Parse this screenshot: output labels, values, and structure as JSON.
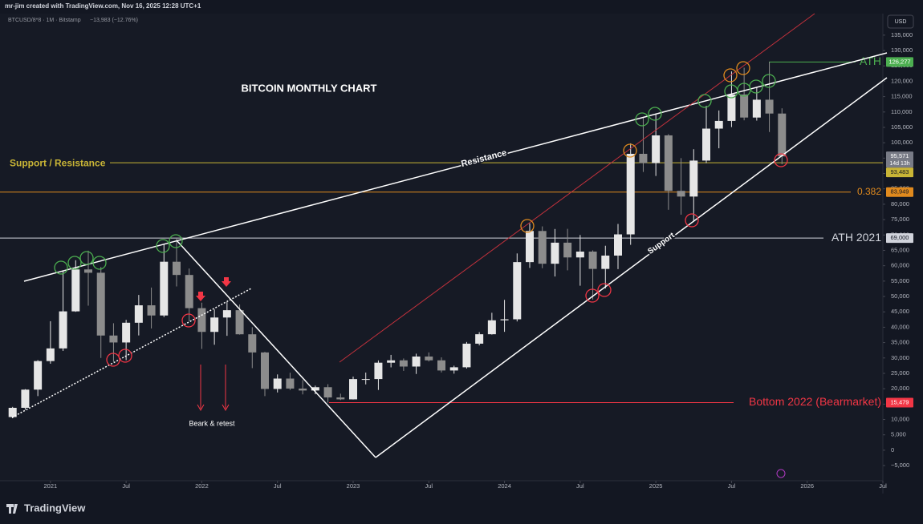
{
  "chart_data": {
    "type": "candlestick",
    "header": "mr-jim created with TradingView.com, Nov 16, 2025 12:28 UTC+1",
    "symbol": "BTCUSD/8*8 · 1M · Bitstamp",
    "change": "−13,983 (−12.76%)",
    "currency": "USD",
    "title": "BITCOIN MONTHLY CHART",
    "annotations": {
      "resistance": "Resistance",
      "support": "Support",
      "bear": "Beark & retest"
    },
    "brand": "TradingView",
    "up_color": "#e6e6e6",
    "down_color": "#8c8c8c",
    "x": [
      "2020-10",
      "2020-11",
      "2020-12",
      "2021-01",
      "2021-02",
      "2021-03",
      "2021-04",
      "2021-05",
      "2021-06",
      "2021-07",
      "2021-08",
      "2021-09",
      "2021-10",
      "2021-11",
      "2021-12",
      "2022-01",
      "2022-02",
      "2022-03",
      "2022-04",
      "2022-05",
      "2022-06",
      "2022-07",
      "2022-08",
      "2022-09",
      "2022-10",
      "2022-11",
      "2022-12",
      "2023-01",
      "2023-02",
      "2023-03",
      "2023-04",
      "2023-05",
      "2023-06",
      "2023-07",
      "2023-08",
      "2023-09",
      "2023-10",
      "2023-11",
      "2023-12",
      "2024-01",
      "2024-02",
      "2024-03",
      "2024-04",
      "2024-05",
      "2024-06",
      "2024-07",
      "2024-08",
      "2024-09",
      "2024-10",
      "2024-11",
      "2024-12",
      "2025-01",
      "2025-02",
      "2025-03",
      "2025-04",
      "2025-05",
      "2025-06",
      "2025-07",
      "2025-08",
      "2025-09",
      "2025-10",
      "2025-11"
    ],
    "open": [
      10780,
      13790,
      19700,
      28990,
      33110,
      45160,
      58800,
      57720,
      37300,
      35040,
      41460,
      47130,
      43820,
      61300,
      57000,
      46200,
      38480,
      43160,
      45540,
      37700,
      31800,
      19930,
      23300,
      20050,
      19420,
      20490,
      17160,
      16540,
      23130,
      23140,
      28460,
      29230,
      27210,
      30470,
      29230,
      25930,
      26970,
      34650,
      37720,
      42250,
      42580,
      61180,
      71300,
      60650,
      67500,
      62700,
      64600,
      58970,
      63300,
      70200,
      96400,
      93400,
      102400,
      84350,
      82500,
      94200,
      104600,
      107100,
      115700,
      108200,
      114000,
      109500
    ],
    "high": [
      14100,
      19860,
      29300,
      41950,
      58350,
      61780,
      64900,
      59600,
      41300,
      42400,
      50500,
      52900,
      67000,
      69000,
      59100,
      47990,
      45800,
      48200,
      47400,
      40000,
      31980,
      24650,
      25200,
      22800,
      21000,
      21460,
      18390,
      23960,
      25250,
      29200,
      31000,
      29830,
      31400,
      31800,
      30200,
      27480,
      35200,
      38400,
      44700,
      48900,
      64000,
      73800,
      72800,
      71950,
      72000,
      70000,
      65000,
      66500,
      73600,
      99800,
      108300,
      109400,
      102800,
      95000,
      97900,
      112000,
      110500,
      123200,
      124400,
      117900,
      126272,
      111200
    ],
    "low": [
      10400,
      13200,
      17600,
      28130,
      32300,
      45000,
      47000,
      30000,
      28800,
      29280,
      37330,
      39600,
      43300,
      53250,
      42000,
      32950,
      34300,
      37200,
      37600,
      26700,
      17600,
      18780,
      19600,
      18150,
      18200,
      15479,
      16300,
      16500,
      21400,
      19600,
      26950,
      25800,
      24800,
      28860,
      25300,
      24900,
      26560,
      34100,
      37600,
      38500,
      41880,
      59300,
      59200,
      56500,
      58500,
      53500,
      49000,
      52600,
      58900,
      66800,
      90500,
      89200,
      78200,
      76600,
      74500,
      93400,
      98200,
      105100,
      107300,
      107200,
      103500,
      93000
    ],
    "close": [
      13790,
      19700,
      28990,
      33110,
      45160,
      58800,
      57720,
      37300,
      35040,
      41460,
      47130,
      43820,
      61300,
      57000,
      46200,
      38480,
      43160,
      45540,
      37700,
      31800,
      19930,
      23300,
      20050,
      19420,
      20490,
      17160,
      16540,
      23130,
      23140,
      28460,
      29230,
      27210,
      30470,
      29230,
      25930,
      26970,
      34650,
      37720,
      42250,
      42580,
      61180,
      71300,
      60650,
      67500,
      62700,
      64600,
      58970,
      63300,
      70200,
      96400,
      93400,
      102400,
      84350,
      82500,
      94200,
      104600,
      107100,
      115700,
      108200,
      114000,
      109500,
      95571
    ],
    "xlim": [
      "2020-09",
      "2026-07"
    ],
    "xticks": [
      {
        "value": "2021-01",
        "label": "2021"
      },
      {
        "value": "2021-07",
        "label": "Jul"
      },
      {
        "value": "2022-01",
        "label": "2022"
      },
      {
        "value": "2022-07",
        "label": "Jul"
      },
      {
        "value": "2023-01",
        "label": "2023"
      },
      {
        "value": "2023-07",
        "label": "Jul"
      },
      {
        "value": "2024-01",
        "label": "2024"
      },
      {
        "value": "2024-07",
        "label": "Jul"
      },
      {
        "value": "2025-01",
        "label": "2025"
      },
      {
        "value": "2025-07",
        "label": "Jul"
      },
      {
        "value": "2026-01",
        "label": "2026"
      },
      {
        "value": "2026-07",
        "label": "Jul"
      }
    ],
    "ylim": [
      -14360,
      142000
    ],
    "yticks": [
      {
        "value": -5000,
        "label": "−5,000"
      },
      0,
      {
        "value": 5000,
        "label": "5,000"
      },
      {
        "value": 10000,
        "label": "10,000"
      },
      {
        "value": 15000,
        "label": "15,000"
      },
      {
        "value": 20000,
        "label": "20,000"
      },
      {
        "value": 25000,
        "label": "25,000"
      },
      {
        "value": 30000,
        "label": "30,000"
      },
      {
        "value": 35000,
        "label": "35,000"
      },
      {
        "value": 40000,
        "label": "40,000"
      },
      {
        "value": 45000,
        "label": "45,000"
      },
      {
        "value": 50000,
        "label": "50,000"
      },
      {
        "value": 55000,
        "label": "55,000"
      },
      {
        "value": 60000,
        "label": "60,000"
      },
      {
        "value": 65000,
        "label": "65,000"
      },
      {
        "value": 70000,
        "label": "70,000"
      },
      {
        "value": 75000,
        "label": "75,000"
      },
      {
        "value": 80000,
        "label": "80,000"
      },
      {
        "value": 85000,
        "label": "85,000"
      },
      {
        "value": 90000,
        "label": "90,000"
      },
      {
        "value": 95000,
        "label": "95,000"
      },
      {
        "value": 100000,
        "label": "100,000"
      },
      {
        "value": 105000,
        "label": "105,000"
      },
      {
        "value": 110000,
        "label": "110,000"
      },
      {
        "value": 115000,
        "label": "115,000"
      },
      {
        "value": 120000,
        "label": "120,000"
      },
      {
        "value": 125000,
        "label": "125,000"
      },
      {
        "value": 130000,
        "label": "130,000"
      },
      {
        "value": 135000,
        "label": "135,000"
      }
    ],
    "grid": false,
    "levels": [
      {
        "name": "ATH",
        "value": 126277,
        "label": "126,277",
        "color": "#4caf50"
      },
      {
        "name": "Support / Resistance",
        "value": 93483,
        "label": "93,483",
        "color": "#c9b536"
      },
      {
        "name": "0.382",
        "value": 83949,
        "label": "83,949",
        "color": "#e08a1e"
      },
      {
        "name": "ATH 2021",
        "value": 69000,
        "label": "69,000",
        "color": "#d1d4dc"
      },
      {
        "name": "Bottom 2022 (Bearmarket)",
        "value": 15479,
        "label": "15,479",
        "color": "#f23645"
      }
    ],
    "last_price": {
      "value": 95571,
      "label": "95,571",
      "countdown": "14d 13h"
    }
  }
}
